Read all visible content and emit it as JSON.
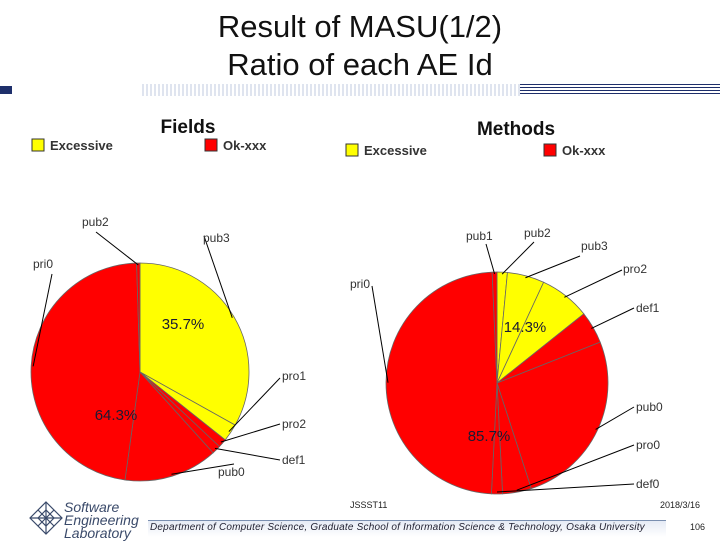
{
  "slide": {
    "title_line1": "Result of MASU(1/2)",
    "title_line2": "Ratio of each AE Id"
  },
  "footer": {
    "logo_line1": "Software",
    "logo_line2": "Engineering",
    "logo_line3": "Laboratory",
    "conference": "JSSST11",
    "date": "2018/3/16",
    "department": "Department of Computer Science, Graduate School of Information Science & Technology, Osaka University",
    "page_number": "106"
  },
  "colors": {
    "excessive": "#ffff00",
    "ok": "#ff0000",
    "accent": "#1e2f6b"
  },
  "chart_data": [
    {
      "type": "pie",
      "title": "Fields",
      "legend": [
        "Excessive",
        "Ok-xxx"
      ],
      "legend_placement": "top",
      "groups": [
        {
          "name": "Excessive",
          "value": 35.7,
          "label": "35.7%"
        },
        {
          "name": "Ok-xxx",
          "value": 64.3,
          "label": "64.3%"
        }
      ],
      "slices": [
        {
          "name": "pub3",
          "group": "Excessive",
          "value": 33.1
        },
        {
          "name": "pro1",
          "group": "Excessive",
          "value": 2.6
        },
        {
          "name": "pro2",
          "group": "Ok-xxx",
          "value": 1.3
        },
        {
          "name": "def1",
          "group": "Ok-xxx",
          "value": 1.3
        },
        {
          "name": "pub0",
          "group": "Ok-xxx",
          "value": 13.9
        },
        {
          "name": "pri0",
          "group": "Ok-xxx",
          "value": 47.3
        },
        {
          "name": "pub2",
          "group": "Ok-xxx",
          "value": 0.5
        }
      ]
    },
    {
      "type": "pie",
      "title": "Methods",
      "legend": [
        "Excessive",
        "Ok-xxx"
      ],
      "legend_placement": "top",
      "groups": [
        {
          "name": "Excessive",
          "value": 14.3,
          "label": "14.3%"
        },
        {
          "name": "Ok-xxx",
          "value": 85.7,
          "label": "85.7%"
        }
      ],
      "slices": [
        {
          "name": "pub2",
          "group": "Excessive",
          "value": 1.5
        },
        {
          "name": "pub3",
          "group": "Excessive",
          "value": 5.4
        },
        {
          "name": "pro2",
          "group": "Excessive",
          "value": 7.4
        },
        {
          "name": "def1",
          "group": "Ok-xxx",
          "value": 4.7
        },
        {
          "name": "pub0",
          "group": "Ok-xxx",
          "value": 26.0
        },
        {
          "name": "pro0",
          "group": "Ok-xxx",
          "value": 4.2
        },
        {
          "name": "def0",
          "group": "Ok-xxx",
          "value": 1.6
        },
        {
          "name": "pri0",
          "group": "Ok-xxx",
          "value": 48.5
        },
        {
          "name": "pub1",
          "group": "Ok-xxx",
          "value": 0.7
        }
      ]
    }
  ]
}
